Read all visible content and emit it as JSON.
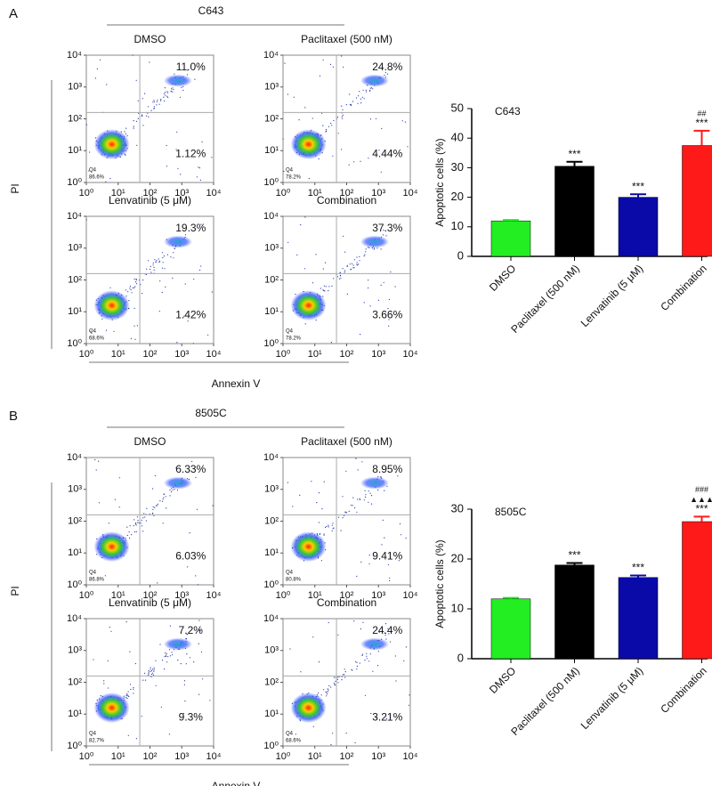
{
  "panels": [
    {
      "label": "A",
      "cell_line": "C643",
      "x_label": "Annexin V",
      "y_label": "PI",
      "flow_plots": [
        {
          "title": "DMSO",
          "upper_right": "11.0%",
          "lower_right": "1.12%",
          "gate": "Q4",
          "lower_left": "86.6%"
        },
        {
          "title": "Paclitaxel (500 nM)",
          "upper_right": "24.8%",
          "lower_right": "4.44%",
          "gate": "Q4",
          "lower_left": "78.2%"
        },
        {
          "title": "Lenvatinib (5 μM)",
          "upper_right": "19.3%",
          "lower_right": "1.42%",
          "gate": "Q4",
          "lower_left": "68.6%"
        },
        {
          "title": "Combination",
          "upper_right": "37.3%",
          "lower_right": "3.66%",
          "gate": "Q4",
          "lower_left": "78.2%"
        }
      ]
    },
    {
      "label": "B",
      "cell_line": "8505C",
      "x_label": "Annexin V",
      "y_label": "PI",
      "flow_plots": [
        {
          "title": "DMSO",
          "upper_right": "6.33%",
          "lower_right": "6.03%",
          "gate": "Q4",
          "lower_left": "86.8%"
        },
        {
          "title": "Paclitaxel (500 nM)",
          "upper_right": "8.95%",
          "lower_right": "9.41%",
          "gate": "Q4",
          "lower_left": "80.8%"
        },
        {
          "title": "Lenvatinib (5 μM)",
          "upper_right": "7.2%",
          "lower_right": "9.3%",
          "gate": "Q4",
          "lower_left": "82.7%"
        },
        {
          "title": "Combination",
          "upper_right": "24.4%",
          "lower_right": "3.21%",
          "gate": "Q4",
          "lower_left": "68.6%"
        }
      ]
    }
  ],
  "flow_axis": {
    "log": true,
    "lim": [
      1,
      10000
    ],
    "ticks": [
      {
        "value": 1,
        "label": "10⁰"
      },
      {
        "value": 10,
        "label": "10¹"
      },
      {
        "value": 100,
        "label": "10²"
      },
      {
        "value": 1000,
        "label": "10³"
      },
      {
        "value": 10000,
        "label": "10⁴"
      }
    ]
  },
  "chart_data": [
    {
      "type": "bar",
      "title": "C643",
      "y_label": "Apoptotic cells (%)",
      "categories": [
        "DMSO",
        "Paclitaxel (500 nM)",
        "Lenvatinib (5 μM)",
        "Combination"
      ],
      "values": [
        12,
        30.5,
        20,
        37.5
      ],
      "errors": [
        0.3,
        1.5,
        1,
        5
      ],
      "colors": [
        "#22ee22",
        "#000000",
        "#0a0aa8",
        "#ff1a1a"
      ],
      "annotations": [
        [],
        [
          "***"
        ],
        [
          "***"
        ],
        [
          "##",
          "***"
        ]
      ],
      "ylim": [
        0,
        50
      ],
      "yticks": [
        0,
        10,
        20,
        30,
        40,
        50
      ]
    },
    {
      "type": "bar",
      "title": "8505C",
      "y_label": "Apoptotic cells (%)",
      "categories": [
        "DMSO",
        "Paclitaxel (500 nM)",
        "Lenvatinib (5 μM)",
        "Combination"
      ],
      "values": [
        12,
        18.8,
        16.3,
        27.5
      ],
      "errors": [
        0.2,
        0.4,
        0.4,
        1
      ],
      "colors": [
        "#22ee22",
        "#000000",
        "#0a0aa8",
        "#ff1a1a"
      ],
      "annotations": [
        [],
        [
          "***"
        ],
        [
          "***"
        ],
        [
          "###",
          "▲▲▲",
          "***"
        ]
      ],
      "ylim": [
        0,
        30
      ],
      "yticks": [
        0,
        10,
        20,
        30
      ]
    }
  ]
}
